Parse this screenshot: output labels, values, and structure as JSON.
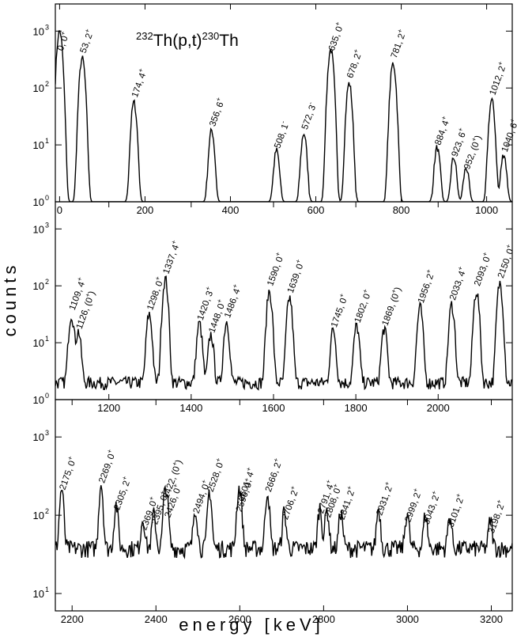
{
  "figure": {
    "title_base": "Th(p,t)",
    "title_mass_a": "232",
    "title_mass_b": "230",
    "title_end": "Th",
    "xlabel": "energy [keV]",
    "ylabel": "counts"
  },
  "chart_data": [
    {
      "type": "line",
      "panel": "top",
      "xlim": [
        -10,
        1060
      ],
      "ylim": [
        1,
        3000
      ],
      "yscale": "log",
      "xticks": [
        0,
        200,
        400,
        600,
        800,
        1000
      ],
      "yticks": [
        1,
        10,
        100,
        1000
      ],
      "ytick_labels": [
        "10",
        "10",
        "10",
        "10"
      ],
      "ytick_exps": [
        "0",
        "1",
        "2",
        "3"
      ],
      "background": 1,
      "peaks": [
        {
          "x": 0,
          "y": 1000,
          "label": "0, 0",
          "sup": "+"
        },
        {
          "x": 53,
          "y": 330,
          "label": "53, 2",
          "sup": "+"
        },
        {
          "x": 174,
          "y": 55,
          "label": "174, 4",
          "sup": "+"
        },
        {
          "x": 356,
          "y": 17,
          "label": "356, 6",
          "sup": "+"
        },
        {
          "x": 508,
          "y": 7,
          "label": "508, 1",
          "sup": "-"
        },
        {
          "x": 572,
          "y": 15,
          "label": "572, 3",
          "sup": "-"
        },
        {
          "x": 635,
          "y": 480,
          "label": "635, 0",
          "sup": "+"
        },
        {
          "x": 678,
          "y": 120,
          "label": "678, 2",
          "sup": "+"
        },
        {
          "x": 781,
          "y": 270,
          "label": "781, 2",
          "sup": "+"
        },
        {
          "x": 884,
          "y": 8,
          "label": "884, 4",
          "sup": "+"
        },
        {
          "x": 923,
          "y": 5,
          "label": "923, 6",
          "sup": "+"
        },
        {
          "x": 952,
          "y": 3,
          "label": "952, (0",
          "sup": "+",
          "close": ")"
        },
        {
          "x": 1012,
          "y": 60,
          "label": "1012, 2",
          "sup": "+"
        },
        {
          "x": 1040,
          "y": 6,
          "label": "1040, 6",
          "sup": "+"
        }
      ]
    },
    {
      "type": "line",
      "panel": "middle",
      "xlim": [
        1070,
        1250
      ],
      "ylim": [
        1,
        3000
      ],
      "yscale": "log",
      "xticks": [
        1200,
        1400,
        1600,
        1800,
        2000
      ],
      "yticks": [
        1,
        10,
        100,
        1000
      ],
      "ytick_labels": [
        "10",
        "10",
        "10",
        "10"
      ],
      "ytick_exps": [
        "0",
        "1",
        "2",
        "3"
      ],
      "background": 2,
      "peaks": [
        {
          "x": 1109,
          "y": 30,
          "label": "1109, 4",
          "sup": "+"
        },
        {
          "x": 1126,
          "y": 14,
          "label": "1126, (0",
          "sup": "+",
          "close": ")"
        },
        {
          "x": 1298,
          "y": 30,
          "label": "1298, 0",
          "sup": "+"
        },
        {
          "x": 1337,
          "y": 130,
          "label": "1337, 4",
          "sup": "+"
        },
        {
          "x": 1420,
          "y": 20,
          "label": "1420, 3",
          "sup": "+"
        },
        {
          "x": 1448,
          "y": 12,
          "label": "1448, 0",
          "sup": "+"
        },
        {
          "x": 1486,
          "y": 22,
          "label": "1486, 4",
          "sup": "+"
        },
        {
          "x": 1590,
          "y": 80,
          "label": "1590, 0",
          "sup": "+"
        },
        {
          "x": 1639,
          "y": 60,
          "label": "1639, 0",
          "sup": "+"
        },
        {
          "x": 1745,
          "y": 15,
          "label": "1745, 0",
          "sup": "+"
        },
        {
          "x": 1802,
          "y": 18,
          "label": "1802, 0",
          "sup": "+"
        },
        {
          "x": 1869,
          "y": 16,
          "label": "1869, (0",
          "sup": "+",
          "close": ")"
        },
        {
          "x": 1956,
          "y": 40,
          "label": "1956, 2",
          "sup": "+"
        },
        {
          "x": 2033,
          "y": 45,
          "label": "2033, 4",
          "sup": "+"
        },
        {
          "x": 2093,
          "y": 80,
          "label": "2093, 0",
          "sup": "+"
        },
        {
          "x": 2150,
          "y": 110,
          "label": "2150, 0",
          "sup": "+"
        }
      ]
    },
    {
      "type": "line",
      "panel": "bottom",
      "xlim": [
        2160,
        3250
      ],
      "ylim": [
        6,
        3000
      ],
      "yscale": "log",
      "xticks": [
        2200,
        2400,
        2600,
        2800,
        3000,
        3200
      ],
      "yticks": [
        10,
        100,
        1000
      ],
      "ytick_labels": [
        "10",
        "10",
        "10"
      ],
      "ytick_exps": [
        "1",
        "2",
        "3"
      ],
      "background": 38,
      "peaks": [
        {
          "x": 2175,
          "y": 180,
          "label": "2175, 0",
          "sup": "+"
        },
        {
          "x": 2269,
          "y": 220,
          "label": "2269, 0",
          "sup": "+"
        },
        {
          "x": 2305,
          "y": 100,
          "label": "2305, 2",
          "sup": "+"
        },
        {
          "x": 2369,
          "y": 55,
          "label": "2369, 0",
          "sup": "+"
        },
        {
          "x": 2395,
          "y": 65,
          "label": "2395, 0",
          "sup": "+"
        },
        {
          "x": 2422,
          "y": 140,
          "label": "2422, (0",
          "sup": "+",
          "close": ")"
        },
        {
          "x": 2426,
          "y": 80,
          "label": "2426, 0",
          "sup": "+"
        },
        {
          "x": 2494,
          "y": 90,
          "label": "2494, 0",
          "sup": "+"
        },
        {
          "x": 2528,
          "y": 170,
          "label": "2528, 0",
          "sup": "+"
        },
        {
          "x": 2596,
          "y": 95,
          "label": "2596, 0",
          "sup": "+"
        },
        {
          "x": 2601,
          "y": 130,
          "label": "2601, 4",
          "sup": "+"
        },
        {
          "x": 2666,
          "y": 170,
          "label": "2666, 2",
          "sup": "+"
        },
        {
          "x": 2706,
          "y": 75,
          "label": "2706, 2",
          "sup": "+"
        },
        {
          "x": 2791,
          "y": 90,
          "label": "2791, 4",
          "sup": "+"
        },
        {
          "x": 2808,
          "y": 80,
          "label": "2808, 0",
          "sup": "+"
        },
        {
          "x": 2841,
          "y": 75,
          "label": "2841, 2",
          "sup": "+"
        },
        {
          "x": 2931,
          "y": 85,
          "label": "2931, 2",
          "sup": "+"
        },
        {
          "x": 2999,
          "y": 70,
          "label": "2999, 2",
          "sup": "+"
        },
        {
          "x": 3043,
          "y": 65,
          "label": "3043, 2",
          "sup": "+"
        },
        {
          "x": 3101,
          "y": 60,
          "label": "3101, 2",
          "sup": "+"
        },
        {
          "x": 3198,
          "y": 50,
          "label": "3198, 2",
          "sup": "+"
        }
      ]
    }
  ]
}
